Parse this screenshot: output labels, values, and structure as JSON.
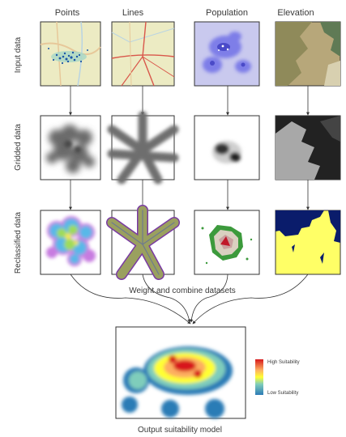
{
  "columns": [
    "Points",
    "Lines",
    "Population",
    "Elevation"
  ],
  "rows": [
    "Input data",
    "Gridded data",
    "Reclassified data"
  ],
  "combine_label": "Weight and combine datasets",
  "output_label": "Output suitability model",
  "legend": {
    "high": "High Suitability",
    "low": "Low Suitability"
  },
  "colors": {
    "high": "#d7191c",
    "mid": "#ffff33",
    "low": "#2c7bb6",
    "water": "#0a1c6b",
    "suitable": "#ffff66"
  }
}
